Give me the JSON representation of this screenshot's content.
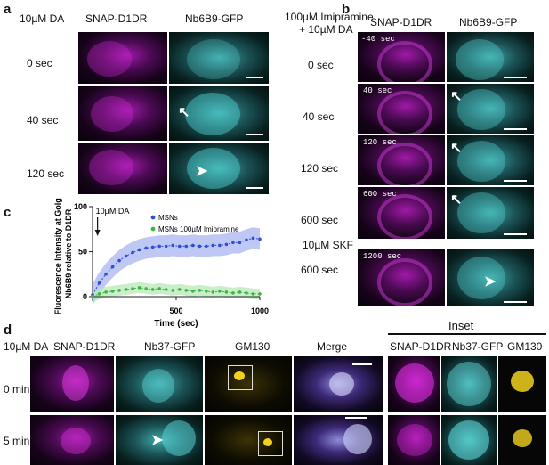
{
  "panel_a": {
    "label": "a",
    "treatment": "10µM DA",
    "col_left": "SNAP-D1DR",
    "col_right": "Nb6B9-GFP",
    "rows": [
      "0 sec",
      "40 sec",
      "120 sec"
    ]
  },
  "panel_b": {
    "label": "b",
    "treatment_line1": "100µM Imipramine",
    "treatment_line2": "+ 10µM DA",
    "col_left": "SNAP-D1DR",
    "col_right": "Nb6B9-GFP",
    "rows": [
      "0 sec",
      "40 sec",
      "120 sec",
      "600 sec",
      "600 sec"
    ],
    "timestamps": [
      "-40 sec",
      "40 sec",
      "120 sec",
      "600 sec",
      "1200 sec"
    ],
    "skf_label": "10µM SKF"
  },
  "panel_c": {
    "label": "c",
    "annotation": "10µM DA",
    "chart_data": {
      "type": "line",
      "xlabel": "Time (sec)",
      "ylabel_line1": "Fluorescence Intensity at Golgi:",
      "ylabel_line2": "Nb6B9 relative to D1DR",
      "xlim": [
        0,
        1000
      ],
      "ylim": [
        -5,
        100
      ],
      "xticks": [
        500,
        1000
      ],
      "yticks": [
        0,
        50,
        100
      ],
      "grid": false,
      "legend_position": "top-right",
      "series": [
        {
          "name": "MSNs",
          "color": "#2f4fd6",
          "band_color": "#aab6f2",
          "band": 12,
          "x": [
            0,
            40,
            80,
            120,
            160,
            200,
            240,
            280,
            320,
            360,
            400,
            440,
            480,
            520,
            560,
            600,
            640,
            680,
            720,
            760,
            800,
            840,
            880,
            920,
            960,
            1000
          ],
          "y": [
            2,
            15,
            25,
            33,
            40,
            45,
            49,
            52,
            54,
            55,
            56,
            56,
            57,
            56,
            56,
            57,
            56,
            56,
            57,
            57,
            58,
            60,
            60,
            63,
            65,
            64
          ]
        },
        {
          "name": "MSNs 100µM Imipramine",
          "color": "#3fb542",
          "band_color": "#b8e8b8",
          "band": 6,
          "x": [
            0,
            40,
            80,
            120,
            160,
            200,
            240,
            280,
            320,
            360,
            400,
            440,
            480,
            520,
            560,
            600,
            640,
            680,
            720,
            760,
            800,
            840,
            880,
            920,
            960,
            1000
          ],
          "y": [
            0,
            3,
            5,
            6,
            7,
            8,
            9,
            10,
            9,
            8,
            9,
            8,
            7,
            8,
            7,
            6,
            7,
            6,
            5,
            6,
            5,
            4,
            5,
            4,
            3,
            3
          ]
        }
      ]
    }
  },
  "panel_d": {
    "label": "d",
    "treatment": "10µM DA",
    "cols": [
      "SNAP-D1DR",
      "Nb37-GFP",
      "GM130",
      "Merge"
    ],
    "inset_title": "Inset",
    "inset_cols": [
      "SNAP-D1DR",
      "Nb37-GFP",
      "GM130"
    ],
    "rows": [
      "0 min",
      "5 min"
    ]
  }
}
